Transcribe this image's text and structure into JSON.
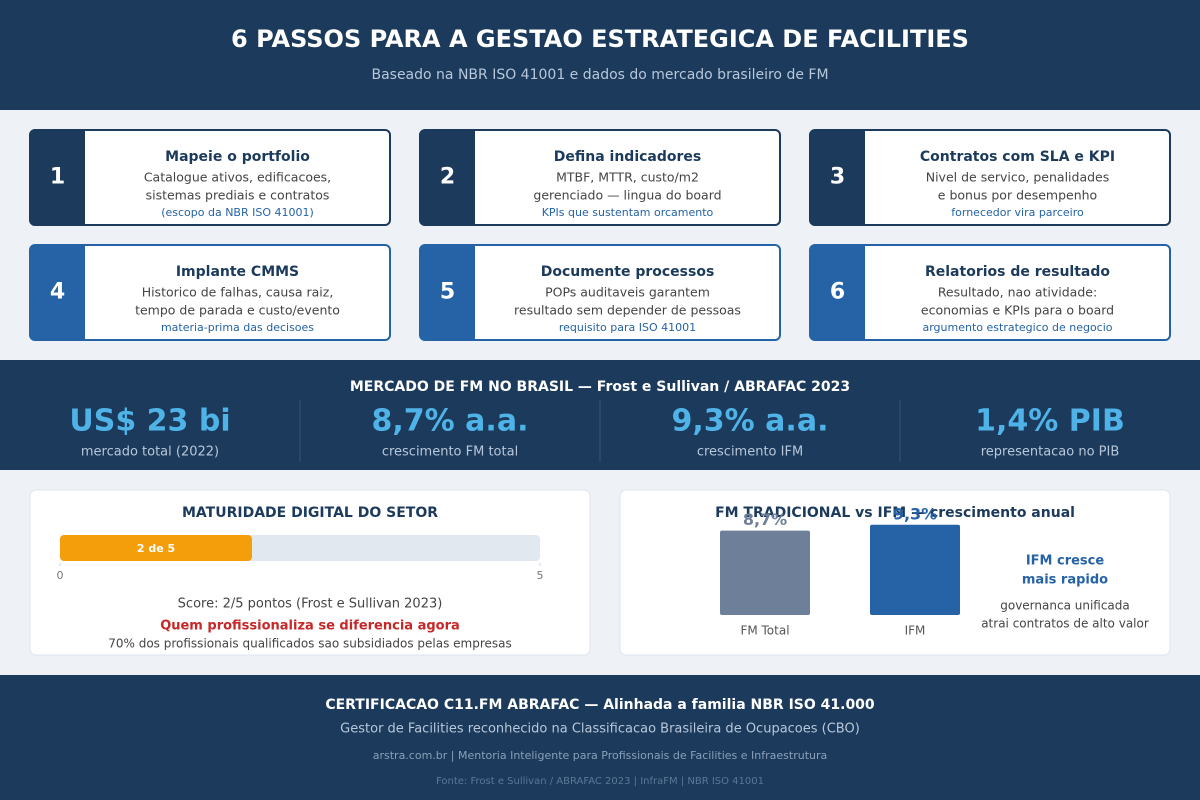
{
  "header": {
    "title": "6 PASSOS PARA A GESTAO ESTRATEGICA DE FACILITIES",
    "subtitle": "Baseado na NBR ISO 41001 e dados do mercado brasileiro de FM"
  },
  "steps": [
    {
      "number": 1,
      "title": "Mapeie o portfolio",
      "lines": [
        "Catalogue ativos, edificacoes,",
        "sistemas prediais e contratos"
      ],
      "note": "(escopo da NBR ISO 41001)"
    },
    {
      "number": 2,
      "title": "Defina indicadores",
      "lines": [
        "MTBF, MTTR, custo/m2",
        "gerenciado — lingua do board"
      ],
      "note": "KPIs que sustentam orcamento"
    },
    {
      "number": 3,
      "title": "Contratos com SLA e KPI",
      "lines": [
        "Nivel de servico, penalidades",
        "e bonus por desempenho"
      ],
      "note": "fornecedor vira parceiro"
    },
    {
      "number": 4,
      "title": "Implante CMMS",
      "lines": [
        "Historico de falhas, causa raiz,",
        "tempo de parada e custo/evento"
      ],
      "note": "materia-prima das decisoes"
    },
    {
      "number": 5,
      "title": "Documente processos",
      "lines": [
        "POPs auditaveis garantem",
        "resultado sem depender de pessoas"
      ],
      "note": "requisito para ISO 41001"
    },
    {
      "number": 6,
      "title": "Relatorios de resultado",
      "lines": [
        "Resultado, nao atividade:",
        "economias e KPIs para o board"
      ],
      "note": "argumento estrategico de negocio"
    }
  ],
  "market": {
    "title": "MERCADO DE FM NO BRASIL — Frost e Sullivan / ABRAFAC 2023",
    "stats": [
      {
        "value": "US$ 23 bi",
        "label": "mercado total (2022)"
      },
      {
        "value": "8,7% a.a.",
        "label": "crescimento FM total"
      },
      {
        "value": "9,3% a.a.",
        "label": "crescimento IFM"
      },
      {
        "value": "1,4% PIB",
        "label": "representacao no PIB"
      }
    ]
  },
  "maturity": {
    "title": "MATURIDADE DIGITAL DO SETOR",
    "value": 2,
    "value_label": "2 de 5",
    "xlim": [
      0,
      5
    ],
    "xticks": [
      0,
      5
    ],
    "color": "#f59e0b",
    "score": "Score: 2/5 pontos (Frost e Sullivan 2023)",
    "alert": "Quem profissionaliza se diferencia agora",
    "note": "70% dos profissionais qualificados sao subsidiados pelas empresas"
  },
  "chart_data": {
    "type": "bar",
    "title": "FM TRADICIONAL vs IFM — crescimento anual",
    "categories": [
      "FM Total",
      "IFM"
    ],
    "values": [
      8.7,
      9.3
    ],
    "value_labels": [
      "8,7%",
      "9,3%"
    ],
    "colors": [
      "#6e7f99",
      "#2563a6"
    ],
    "ylim": [
      0,
      10
    ],
    "callout": {
      "title": [
        "IFM cresce",
        "mais rapido"
      ],
      "lines": [
        "governanca unificada",
        "atrai contratos de alto valor"
      ]
    }
  },
  "footer": {
    "title": "CERTIFICACAO C11.FM ABRAFAC — Alinhada a familia NBR ISO 41.000",
    "subtitle": "Gestor de Facilities reconhecido na Classificacao Brasileira de Ocupacoes (CBO)",
    "site": "arstra.com.br | Mentoria Inteligente para Profissionais de Facilities e Infraestrutura",
    "source": "Fonte: Frost e Sullivan / ABRAFAC 2023 | InfraFM | NBR ISO 41001"
  }
}
